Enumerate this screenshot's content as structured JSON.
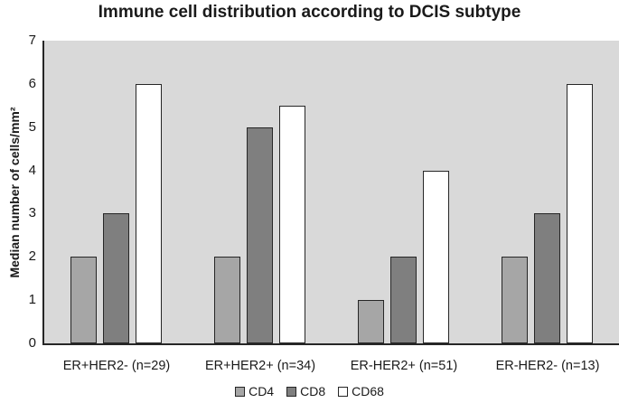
{
  "title": "Immune cell distribution according to DCIS subtype",
  "chart_data": {
    "type": "bar",
    "categories": [
      "ER+HER2- (n=29)",
      "ER+HER2+ (n=34)",
      "ER-HER2+ (n=51)",
      "ER-HER2- (n=13)"
    ],
    "series": [
      {
        "name": "CD4",
        "color": "#a6a6a6",
        "values": [
          2,
          2,
          1,
          2
        ]
      },
      {
        "name": "CD8",
        "color": "#7f7f7f",
        "values": [
          3,
          5,
          2,
          3
        ]
      },
      {
        "name": "CD68",
        "color": "#ffffff",
        "values": [
          6,
          5.5,
          4,
          6
        ]
      }
    ],
    "xlabel": "",
    "ylabel": "Median number of cells/mm²",
    "ylim": [
      0,
      7
    ],
    "ytick_step": 1,
    "grid": false,
    "legend_position": "bottom",
    "plot_bg": "#d9d9d9",
    "bar_border_color": "#262626",
    "axis_color": "#262626",
    "text_color": "#1a1a1a"
  }
}
